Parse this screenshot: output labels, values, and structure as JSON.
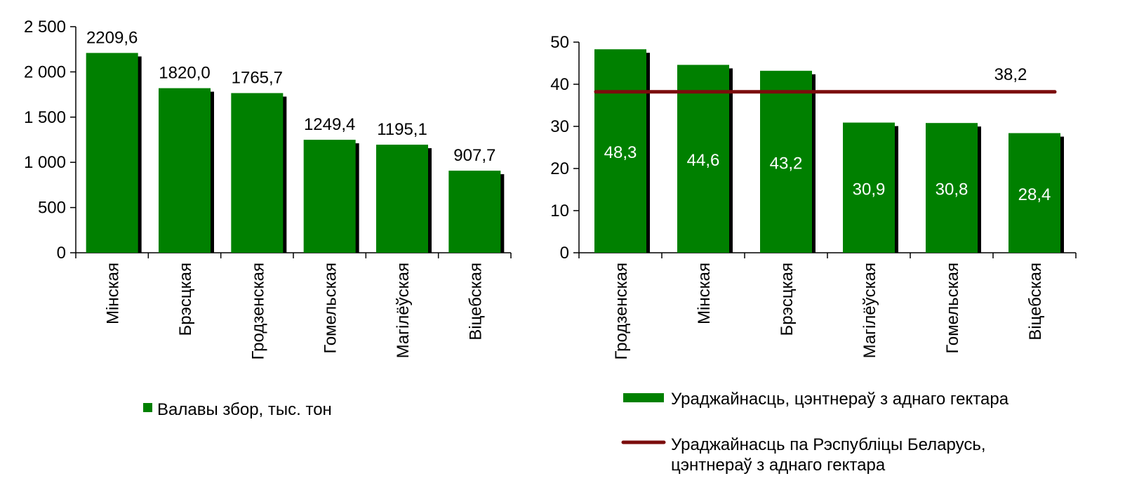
{
  "colors": {
    "bar": "#008000",
    "bar_shadow": "#000000",
    "average_line": "#7b0c0c",
    "axis": "#000000",
    "bar_label_inside": "#ffffff"
  },
  "chart_data": [
    {
      "type": "bar",
      "categories": [
        "Мінская",
        "Брэсцкая",
        "Гродзенская",
        "Гомельская",
        "Магілёўская",
        "Віцебская"
      ],
      "series": [
        {
          "name": "Валавы збор, тыс. тон",
          "values": [
            2209.6,
            1820.0,
            1765.7,
            1249.4,
            1195.1,
            907.7
          ],
          "value_labels": [
            "2209,6",
            "1820,0",
            "1765,7",
            "1249,4",
            "1195,1",
            "907,7"
          ]
        }
      ],
      "ylim": [
        0,
        2500
      ],
      "yticks": [
        0,
        500,
        1000,
        1500,
        2000,
        2500
      ],
      "ytick_labels": [
        "0",
        "500",
        "1 000",
        "1 500",
        "2 000",
        "2 500"
      ],
      "grid": false,
      "legend": "bottom"
    },
    {
      "type": "bar",
      "categories": [
        "Гродзенская",
        "Мінская",
        "Брэсцкая",
        "Магілёўская",
        "Гомельская",
        "Віцебская"
      ],
      "series": [
        {
          "name": "Ураджайнасць, цэнтнераў з аднаго гектара",
          "type": "bar",
          "values": [
            48.3,
            44.6,
            43.2,
            30.9,
            30.8,
            28.4
          ],
          "value_labels": [
            "48,3",
            "44,6",
            "43,2",
            "30,9",
            "30,8",
            "28,4"
          ]
        },
        {
          "name": "Ураджайнасць па Рэспубліцы Беларусь, цэнтнераў з аднаго гектара",
          "name_lines": [
            "Ураджайнасць па Рэспубліцы Беларусь,",
            "цэнтнераў з аднаго гектара"
          ],
          "type": "line",
          "values": [
            38.2,
            38.2,
            38.2,
            38.2,
            38.2,
            38.2
          ],
          "value_label": "38,2"
        }
      ],
      "ylim": [
        0,
        50
      ],
      "yticks": [
        0,
        10,
        20,
        30,
        40,
        50
      ],
      "ytick_labels": [
        "0",
        "10",
        "20",
        "30",
        "40",
        "50"
      ],
      "grid": false,
      "legend": "bottom"
    }
  ]
}
